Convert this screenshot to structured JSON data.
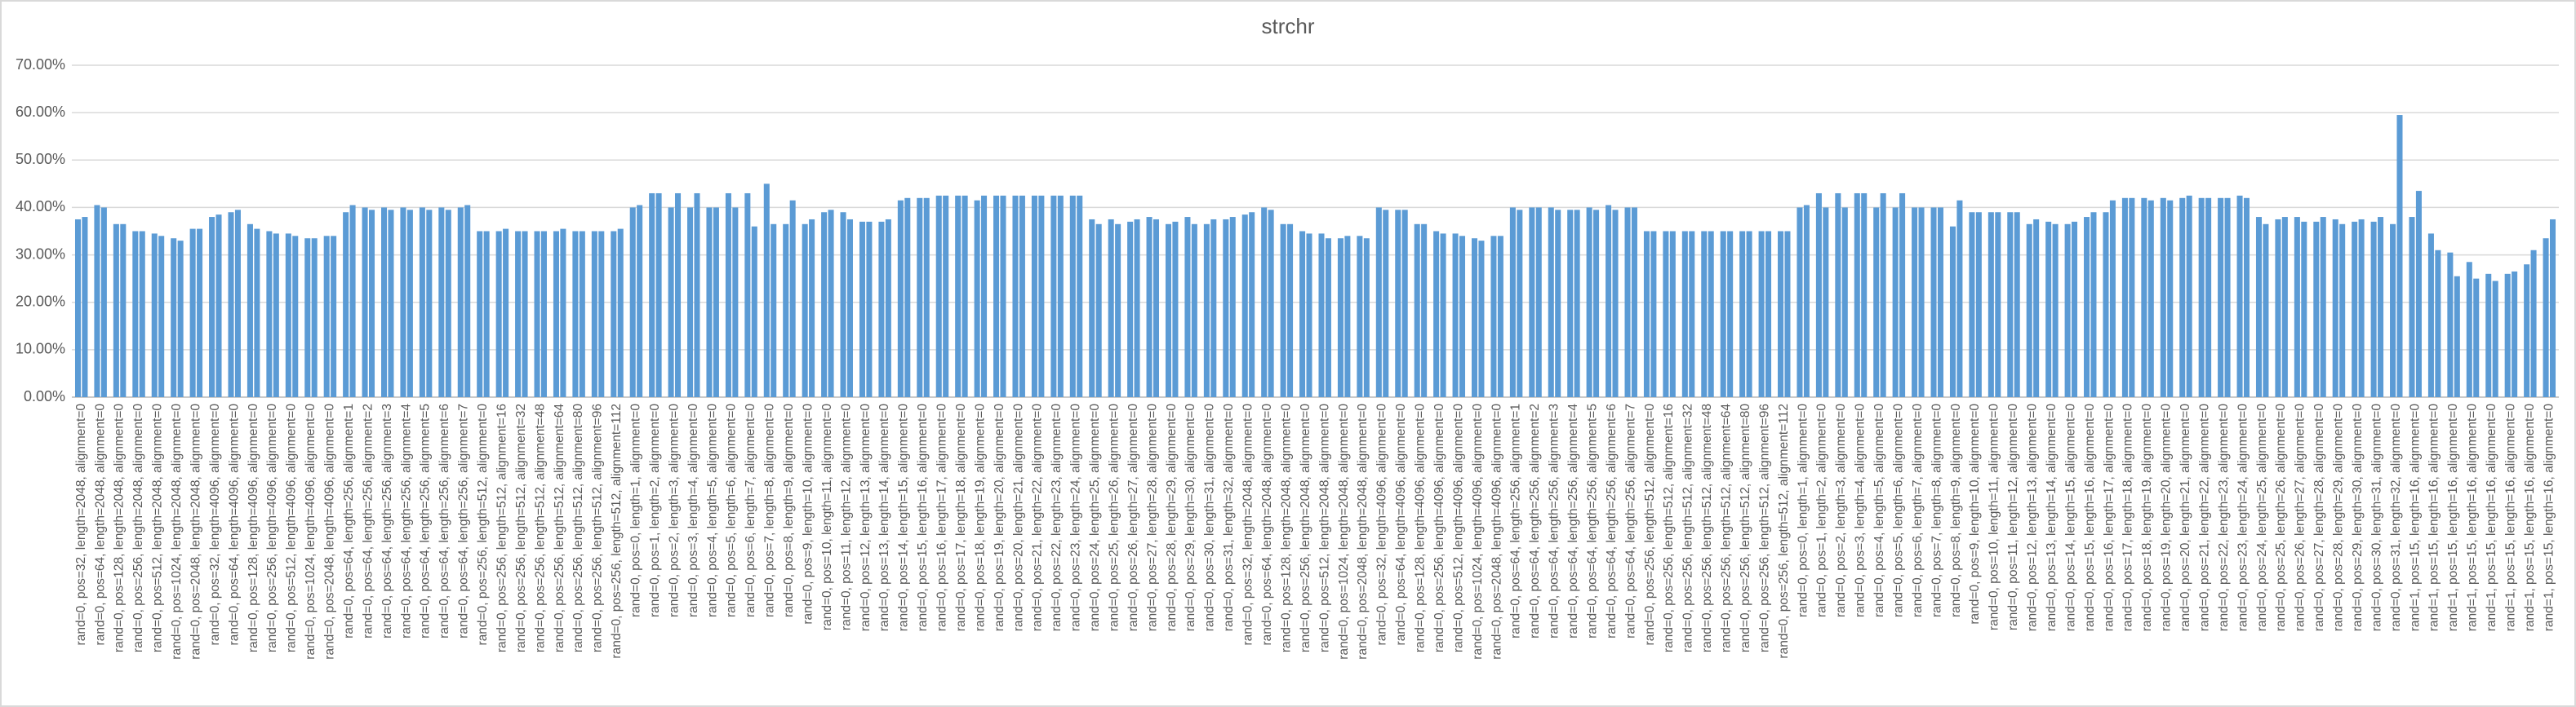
{
  "chart_data": {
    "type": "bar",
    "title": "strchr",
    "categories": [
      "rand=0, pos=32, length=2048, alignment=0",
      "rand=0, pos=64, length=2048, alignment=0",
      "rand=0, pos=128, length=2048, alignment=0",
      "rand=0, pos=256, length=2048, alignment=0",
      "rand=0, pos=512, length=2048, alignment=0",
      "rand=0, pos=1024, length=2048, alignment=0",
      "rand=0, pos=2048, length=2048, alignment=0",
      "rand=0, pos=32, length=4096, alignment=0",
      "rand=0, pos=64, length=4096, alignment=0",
      "rand=0, pos=128, length=4096, alignment=0",
      "rand=0, pos=256, length=4096, alignment=0",
      "rand=0, pos=512, length=4096, alignment=0",
      "rand=0, pos=1024, length=4096, alignment=0",
      "rand=0, pos=2048, length=4096, alignment=0",
      "rand=0, pos=64, length=256, alignment=1",
      "rand=0, pos=64, length=256, alignment=2",
      "rand=0, pos=64, length=256, alignment=3",
      "rand=0, pos=64, length=256, alignment=4",
      "rand=0, pos=64, length=256, alignment=5",
      "rand=0, pos=64, length=256, alignment=6",
      "rand=0, pos=64, length=256, alignment=7",
      "rand=0, pos=256, length=512, alignment=0",
      "rand=0, pos=256, length=512, alignment=16",
      "rand=0, pos=256, length=512, alignment=32",
      "rand=0, pos=256, length=512, alignment=48",
      "rand=0, pos=256, length=512, alignment=64",
      "rand=0, pos=256, length=512, alignment=80",
      "rand=0, pos=256, length=512, alignment=96",
      "rand=0, pos=256, length=512, alignment=112",
      "rand=0, pos=0, length=1, alignment=0",
      "rand=0, pos=1, length=2, alignment=0",
      "rand=0, pos=2, length=3, alignment=0",
      "rand=0, pos=3, length=4, alignment=0",
      "rand=0, pos=4, length=5, alignment=0",
      "rand=0, pos=5, length=6, alignment=0",
      "rand=0, pos=6, length=7, alignment=0",
      "rand=0, pos=7, length=8, alignment=0",
      "rand=0, pos=8, length=9, alignment=0",
      "rand=0, pos=9, length=10, alignment=0",
      "rand=0, pos=10, length=11, alignment=0",
      "rand=0, pos=11, length=12, alignment=0",
      "rand=0, pos=12, length=13, alignment=0",
      "rand=0, pos=13, length=14, alignment=0",
      "rand=0, pos=14, length=15, alignment=0",
      "rand=0, pos=15, length=16, alignment=0",
      "rand=0, pos=16, length=17, alignment=0",
      "rand=0, pos=17, length=18, alignment=0",
      "rand=0, pos=18, length=19, alignment=0",
      "rand=0, pos=19, length=20, alignment=0",
      "rand=0, pos=20, length=21, alignment=0",
      "rand=0, pos=21, length=22, alignment=0",
      "rand=0, pos=22, length=23, alignment=0",
      "rand=0, pos=23, length=24, alignment=0",
      "rand=0, pos=24, length=25, alignment=0",
      "rand=0, pos=25, length=26, alignment=0",
      "rand=0, pos=26, length=27, alignment=0",
      "rand=0, pos=27, length=28, alignment=0",
      "rand=0, pos=28, length=29, alignment=0",
      "rand=0, pos=29, length=30, alignment=0",
      "rand=0, pos=30, length=31, alignment=0",
      "rand=0, pos=31, length=32, alignment=0",
      "rand=0, pos=32, length=2048, alignment=0",
      "rand=0, pos=64, length=2048, alignment=0",
      "rand=0, pos=128, length=2048, alignment=0",
      "rand=0, pos=256, length=2048, alignment=0",
      "rand=0, pos=512, length=2048, alignment=0",
      "rand=0, pos=1024, length=2048, alignment=0",
      "rand=0, pos=2048, length=2048, alignment=0",
      "rand=0, pos=32, length=4096, alignment=0",
      "rand=0, pos=64, length=4096, alignment=0",
      "rand=0, pos=128, length=4096, alignment=0",
      "rand=0, pos=256, length=4096, alignment=0",
      "rand=0, pos=512, length=4096, alignment=0",
      "rand=0, pos=1024, length=4096, alignment=0",
      "rand=0, pos=2048, length=4096, alignment=0",
      "rand=0, pos=64, length=256, alignment=1",
      "rand=0, pos=64, length=256, alignment=2",
      "rand=0, pos=64, length=256, alignment=3",
      "rand=0, pos=64, length=256, alignment=4",
      "rand=0, pos=64, length=256, alignment=5",
      "rand=0, pos=64, length=256, alignment=6",
      "rand=0, pos=64, length=256, alignment=7",
      "rand=0, pos=256, length=512, alignment=0",
      "rand=0, pos=256, length=512, alignment=16",
      "rand=0, pos=256, length=512, alignment=32",
      "rand=0, pos=256, length=512, alignment=48",
      "rand=0, pos=256, length=512, alignment=64",
      "rand=0, pos=256, length=512, alignment=80",
      "rand=0, pos=256, length=512, alignment=96",
      "rand=0, pos=256, length=512, alignment=112",
      "rand=0, pos=0, length=1, alignment=0",
      "rand=0, pos=1, length=2, alignment=0",
      "rand=0, pos=2, length=3, alignment=0",
      "rand=0, pos=3, length=4, alignment=0",
      "rand=0, pos=4, length=5, alignment=0",
      "rand=0, pos=5, length=6, alignment=0",
      "rand=0, pos=6, length=7, alignment=0",
      "rand=0, pos=7, length=8, alignment=0",
      "rand=0, pos=8, length=9, alignment=0",
      "rand=0, pos=9, length=10, alignment=0",
      "rand=0, pos=10, length=11, alignment=0",
      "rand=0, pos=11, length=12, alignment=0",
      "rand=0, pos=12, length=13, alignment=0",
      "rand=0, pos=13, length=14, alignment=0",
      "rand=0, pos=14, length=15, alignment=0",
      "rand=0, pos=15, length=16, alignment=0",
      "rand=0, pos=16, length=17, alignment=0",
      "rand=0, pos=17, length=18, alignment=0",
      "rand=0, pos=18, length=19, alignment=0",
      "rand=0, pos=19, length=20, alignment=0",
      "rand=0, pos=20, length=21, alignment=0",
      "rand=0, pos=21, length=22, alignment=0",
      "rand=0, pos=22, length=23, alignment=0",
      "rand=0, pos=23, length=24, alignment=0",
      "rand=0, pos=24, length=25, alignment=0",
      "rand=0, pos=25, length=26, alignment=0",
      "rand=0, pos=26, length=27, alignment=0",
      "rand=0, pos=27, length=28, alignment=0",
      "rand=0, pos=28, length=29, alignment=0",
      "rand=0, pos=29, length=30, alignment=0",
      "rand=0, pos=30, length=31, alignment=0",
      "rand=0, pos=31, length=32, alignment=0",
      "rand=1, pos=15, length=16, alignment=0",
      "rand=1, pos=15, length=16, alignment=0",
      "rand=1, pos=15, length=16, alignment=0",
      "rand=1, pos=15, length=16, alignment=0",
      "rand=1, pos=15, length=16, alignment=0",
      "rand=1, pos=15, length=16, alignment=0",
      "rand=1, pos=15, length=16, alignment=0",
      "rand=1, pos=15, length=16, alignment=0"
    ],
    "series": [
      {
        "color": "#5b9bd5",
        "values": [
          37.5,
          40.5,
          36.5,
          35,
          34.5,
          33.5,
          35.5,
          38,
          39,
          36.5,
          35,
          34.5,
          33.5,
          34,
          39,
          40,
          40,
          40,
          40,
          40,
          40,
          35,
          35,
          35,
          35,
          35,
          35,
          35,
          35,
          40,
          43,
          40,
          40,
          40,
          43,
          43,
          45,
          36.5,
          36.5,
          39,
          39,
          37,
          37,
          41.5,
          42,
          42.5,
          42.5,
          41.5,
          42.5,
          42.5,
          42.5,
          42.5,
          42.5,
          37.5,
          37.5,
          37,
          38,
          36.5,
          38,
          36.5,
          37.5,
          38.5,
          40,
          36.5,
          35,
          34.5,
          33.5,
          34,
          40,
          39.5,
          36.5,
          35,
          34.5,
          33.5,
          34,
          40,
          40,
          40,
          39.5,
          40,
          40.5,
          40,
          35,
          35,
          35,
          35,
          35,
          35,
          35,
          35,
          40,
          43,
          43,
          43,
          40,
          40,
          40,
          40,
          36,
          39,
          39,
          39,
          36.5,
          37,
          36.5,
          38,
          39,
          42,
          42,
          42,
          42,
          42,
          42,
          42.5,
          38,
          37.5,
          38,
          37,
          37.5,
          37,
          37,
          36.5,
          38,
          34.5,
          30.5,
          28.5,
          26,
          26,
          28,
          33.5
        ]
      },
      {
        "color": "#5b9bd5",
        "values": [
          38,
          40,
          36.5,
          35,
          34,
          33,
          35.5,
          38.5,
          39.5,
          35.5,
          34.5,
          34,
          33.5,
          34,
          40.5,
          39.5,
          39.5,
          39.5,
          39.5,
          39.5,
          40.5,
          35,
          35.5,
          35,
          35,
          35.5,
          35,
          35,
          35.5,
          40.5,
          43,
          43,
          43,
          40,
          40,
          36,
          36.5,
          41.5,
          37.5,
          39.5,
          37.5,
          37,
          37.5,
          42,
          42,
          42.5,
          42.5,
          42.5,
          42.5,
          42.5,
          42.5,
          42.5,
          42.5,
          36.5,
          36.5,
          37.5,
          37.5,
          37,
          36.5,
          37.5,
          38,
          39,
          39.5,
          36.5,
          34.5,
          33.5,
          34,
          33.5,
          39.5,
          39.5,
          36.5,
          34.5,
          34,
          33,
          34,
          39.5,
          40,
          39.5,
          39.5,
          39.5,
          39.5,
          40,
          35,
          35,
          35,
          35,
          35,
          35,
          35,
          35,
          40.5,
          40,
          40,
          43,
          43,
          43,
          40,
          40,
          41.5,
          39,
          39,
          39,
          37.5,
          36.5,
          37,
          39,
          41.5,
          42,
          41.5,
          41.5,
          42.5,
          42,
          42,
          42,
          36.5,
          38,
          37,
          38,
          36.5,
          37.5,
          38,
          59.5,
          43.5,
          31,
          25.5,
          25,
          24.5,
          26.5,
          31,
          37.5
        ]
      }
    ],
    "ylim": [
      0,
      70
    ],
    "yticks": [
      {
        "value": 0,
        "label": "0.00%"
      },
      {
        "value": 10,
        "label": "10.00%"
      },
      {
        "value": 20,
        "label": "20.00%"
      },
      {
        "value": 30,
        "label": "30.00%"
      },
      {
        "value": 40,
        "label": "40.00%"
      },
      {
        "value": 50,
        "label": "50.00%"
      },
      {
        "value": 60,
        "label": "60.00%"
      },
      {
        "value": 70,
        "label": "70.00%"
      }
    ],
    "grid": true
  }
}
